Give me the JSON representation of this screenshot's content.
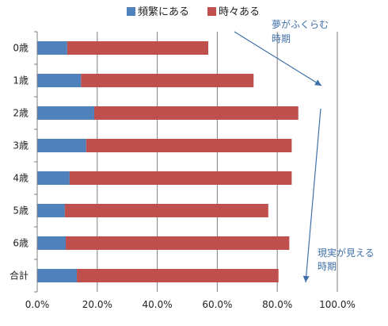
{
  "chart_data": {
    "type": "bar",
    "orientation": "horizontal",
    "stacked": true,
    "categories": [
      "0歳",
      "1歳",
      "2歳",
      "3歳",
      "4歳",
      "5歳",
      "6歳",
      "合計"
    ],
    "series": [
      {
        "name": "頻繁にある",
        "color": "#4f81bd",
        "values": [
          10,
          14.6,
          19,
          16.3,
          10.8,
          9.2,
          9.5,
          13.2
        ]
      },
      {
        "name": "時々ある",
        "color": "#c0504d",
        "values": [
          47,
          57.5,
          68,
          68.5,
          74,
          67.8,
          74.5,
          67.2
        ]
      }
    ],
    "xlim": [
      0,
      100
    ],
    "xticks": [
      0,
      20,
      40,
      60,
      80,
      100
    ],
    "xtick_labels": [
      "0.0%",
      "20.0%",
      "40.0%",
      "60.0%",
      "80.0%",
      "100.0%"
    ],
    "grid": "vertical",
    "legend": "top",
    "annotations": [
      {
        "lines": [
          "夢がふくらむ",
          "時期"
        ]
      },
      {
        "lines": [
          "現実が見える",
          "時期"
        ]
      }
    ],
    "annotation_color": "#3f6fa8"
  }
}
